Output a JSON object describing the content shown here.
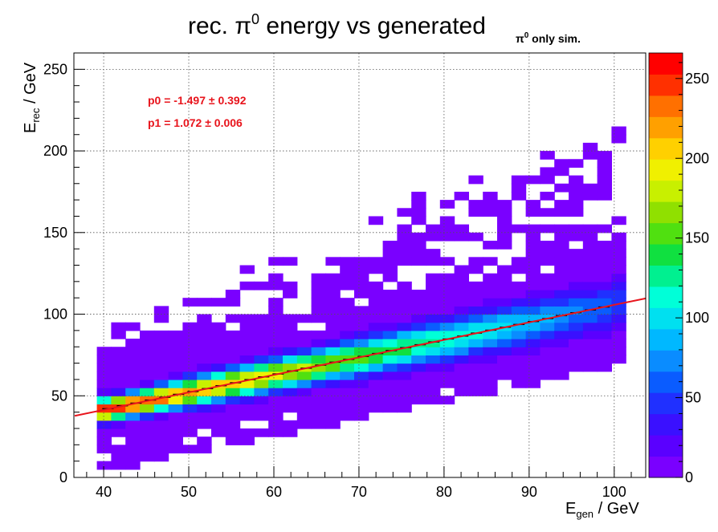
{
  "chart_data": {
    "type": "heatmap",
    "title": "rec. π",
    "title_sup": "0",
    "title_rest": " energy vs generated",
    "tag": "π",
    "tag_sup": "0",
    "tag_rest": " only sim.",
    "xlabel_main": "E",
    "xlabel_sub": "gen",
    "xlabel_rest": " / GeV",
    "ylabel_main": "E",
    "ylabel_sub": "rec",
    "ylabel_rest": " / GeV",
    "xlim": [
      36.5,
      103.7
    ],
    "ylim": [
      0,
      260
    ],
    "xticks": [
      40,
      50,
      60,
      70,
      80,
      90,
      100
    ],
    "yticks": [
      0,
      50,
      100,
      150,
      200,
      250
    ],
    "colorbar_ticks": [
      0,
      50,
      100,
      150,
      200,
      250
    ],
    "colorbar_range": [
      0,
      266
    ],
    "grid": true,
    "fit": {
      "p0_text": "p0 = -1.497 ± 0.392",
      "p1_text": "p1 = 1.072 ± 0.006",
      "p0": -1.497,
      "p1": 1.072,
      "color": "#e8141c"
    },
    "profile_points": [
      [
        40.5,
        42.1
      ],
      [
        42.2,
        43.9
      ],
      [
        43.8,
        45.5
      ],
      [
        45.5,
        47.4
      ],
      [
        47.2,
        49.1
      ],
      [
        48.8,
        50.9
      ],
      [
        50.5,
        52.6
      ],
      [
        52.2,
        54.4
      ],
      [
        53.8,
        56.2
      ],
      [
        55.5,
        58.0
      ],
      [
        57.2,
        59.9
      ],
      [
        58.8,
        61.6
      ],
      [
        60.5,
        63.4
      ],
      [
        62.2,
        65.2
      ],
      [
        63.8,
        66.9
      ],
      [
        65.5,
        68.8
      ],
      [
        67.2,
        70.6
      ],
      [
        68.8,
        72.3
      ],
      [
        70.5,
        74.1
      ],
      [
        72.2,
        75.9
      ],
      [
        73.8,
        77.7
      ],
      [
        75.5,
        79.5
      ],
      [
        77.2,
        81.3
      ],
      [
        78.8,
        83.0
      ],
      [
        80.5,
        84.8
      ],
      [
        82.2,
        86.6
      ],
      [
        83.8,
        88.4
      ],
      [
        85.5,
        90.2
      ],
      [
        87.2,
        92.0
      ],
      [
        88.8,
        93.7
      ],
      [
        90.5,
        95.5
      ],
      [
        92.2,
        97.3
      ],
      [
        93.8,
        99.1
      ],
      [
        95.5,
        100.9
      ],
      [
        97.2,
        102.6
      ],
      [
        98.8,
        104.4
      ]
    ],
    "colors": {
      "palette": [
        "#7a00ff",
        "#5a00ff",
        "#3a10ff",
        "#2030ff",
        "#0a5cff",
        "#0a8cff",
        "#00b8ff",
        "#00e0f0",
        "#00ffd8",
        "#00f090",
        "#10e040",
        "#50e010",
        "#90e000",
        "#c8f000",
        "#f0f000",
        "#ffd000",
        "#ffa000",
        "#ff7000",
        "#ff3000",
        "#ff0000"
      ]
    }
  }
}
